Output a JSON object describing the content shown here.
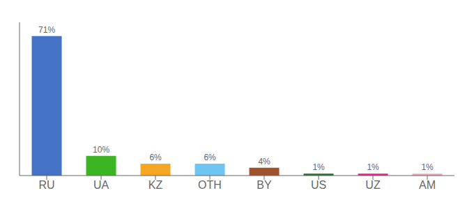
{
  "chart_data": {
    "type": "bar",
    "categories": [
      "RU",
      "UA",
      "KZ",
      "OTH",
      "BY",
      "US",
      "UZ",
      "AM"
    ],
    "values": [
      71,
      10,
      6,
      6,
      4,
      1,
      1,
      1
    ],
    "value_labels": [
      "71%",
      "10%",
      "6%",
      "6%",
      "4%",
      "1%",
      "1%",
      "1%"
    ],
    "data_labels": true,
    "colors": [
      "#4472c4",
      "#3cb523",
      "#f5a623",
      "#6ec6f0",
      "#a0522d",
      "#2d6b2d",
      "#e91e8c",
      "#f4a7b9"
    ],
    "ylim": [
      0,
      78
    ],
    "grid": false,
    "tick_labels": "x"
  }
}
